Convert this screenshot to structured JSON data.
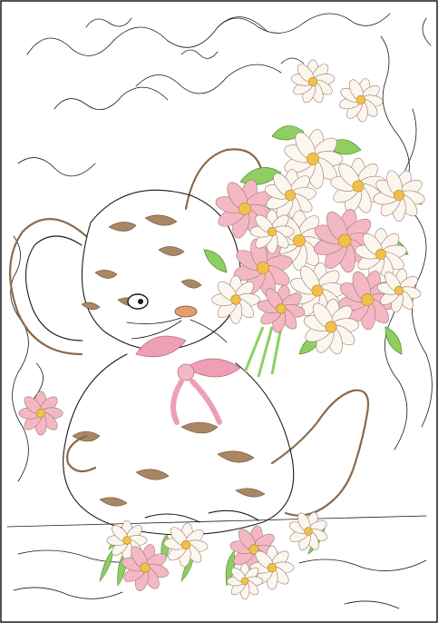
{
  "image": {
    "subject": "",
    "palette": {
      "background": "#ffffff",
      "outline": "#1a1a1a",
      "fur": "#a98763",
      "fur_dark": "#6e5237",
      "petal_pink": "#f4b8c4",
      "petal_white": "#fbf6ee",
      "center_yellow": "#f2c04a",
      "leaf_green": "#8fcf62",
      "ribbon_pink": "#ee9fb4"
    }
  }
}
